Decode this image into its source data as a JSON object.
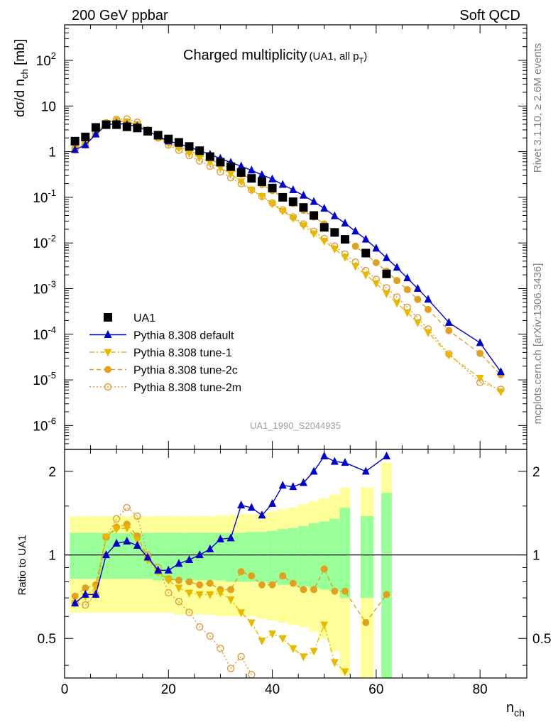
{
  "header": {
    "left": "200 GeV ppbar",
    "right": "Soft QCD"
  },
  "side_text": {
    "top": "Rivet 3.1.10, ≥ 2.6M events",
    "bottom": "mcplots.cern.ch [arXiv:1306.3436]"
  },
  "watermark": "UA1_1990_S2044935",
  "title_main": "Charged multiplicity",
  "title_sub_a": "(UA1, all p",
  "title_sub_sub": "T",
  "title_sub_b": ")",
  "ylabel_top": {
    "a": "dσ/d n",
    "sub": "ch",
    "b": " [mb]"
  },
  "ylabel_bottom": "Ratio to UA1",
  "xlabel": {
    "a": "n",
    "sub": "ch"
  },
  "colors": {
    "data": "#000000",
    "default": "#0000cc",
    "tune1": "#e6b800",
    "tune2c": "#e0a020",
    "tune2m": "#e39a3a",
    "band_inner": "#99ff99",
    "band_outer": "#ffff99"
  },
  "chart_data": [
    {
      "type": "scatter",
      "scale": "log",
      "xlim": [
        0,
        89
      ],
      "ylim": [
        3e-07,
        600
      ],
      "x_ticks": [
        "0",
        "20",
        "40",
        "60",
        "80"
      ],
      "y_ticks": [
        "10^-6",
        "10^-5",
        "10^-4",
        "10^-3",
        "10^-2",
        "10^-1",
        "1",
        "10",
        "10^2"
      ],
      "legend_position": "middle-left",
      "series": [
        {
          "name": "UA1",
          "style": "data",
          "x": [
            2,
            4,
            6,
            8,
            10,
            12,
            14,
            16,
            18,
            20,
            22,
            24,
            26,
            28,
            30,
            32,
            34,
            36,
            38,
            40,
            42,
            44,
            46,
            48,
            50,
            52,
            54,
            58,
            62
          ],
          "y": [
            1.7,
            2.1,
            3.4,
            3.9,
            3.9,
            3.5,
            3.3,
            2.8,
            2.3,
            1.9,
            1.6,
            1.3,
            1.05,
            0.78,
            0.59,
            0.47,
            0.35,
            0.26,
            0.22,
            0.16,
            0.1,
            0.08,
            0.06,
            0.04,
            0.022,
            0.017,
            0.012,
            0.006,
            0.0021
          ]
        },
        {
          "name": "Pythia 8.308 default",
          "style": "default",
          "x": [
            2,
            4,
            6,
            8,
            10,
            12,
            14,
            16,
            18,
            20,
            22,
            24,
            26,
            28,
            30,
            32,
            34,
            36,
            38,
            40,
            42,
            44,
            46,
            48,
            50,
            52,
            54,
            56,
            58,
            60,
            62,
            64,
            66,
            68,
            70,
            74,
            80,
            84
          ],
          "y": [
            1.1,
            1.4,
            2.4,
            3.8,
            4.2,
            3.9,
            3.6,
            2.8,
            2.2,
            1.7,
            1.5,
            1.25,
            1.05,
            0.87,
            0.71,
            0.58,
            0.48,
            0.39,
            0.31,
            0.25,
            0.19,
            0.145,
            0.11,
            0.08,
            0.057,
            0.039,
            0.027,
            0.018,
            0.012,
            0.0076,
            0.0047,
            0.0029,
            0.0017,
            0.001,
            0.00058,
            0.00018,
            6.5e-05,
            1.5e-05
          ]
        },
        {
          "name": "Pythia 8.308 tune-1",
          "style": "tune1",
          "x": [
            2,
            4,
            6,
            8,
            10,
            12,
            14,
            16,
            18,
            20,
            22,
            24,
            26,
            28,
            30,
            32,
            34,
            36,
            38,
            40,
            42,
            44,
            46,
            48,
            50,
            52,
            54,
            56,
            58,
            60,
            62,
            64,
            66,
            68,
            70,
            74,
            80,
            84
          ],
          "y": [
            1.1,
            1.5,
            2.6,
            4.2,
            4.8,
            4.4,
            3.8,
            2.9,
            2.1,
            1.5,
            1.2,
            0.93,
            0.75,
            0.58,
            0.44,
            0.33,
            0.22,
            0.145,
            0.105,
            0.072,
            0.05,
            0.035,
            0.024,
            0.016,
            0.011,
            0.0074,
            0.0049,
            0.0031,
            0.002,
            0.0013,
            0.00078,
            0.00048,
            0.0003,
            0.00018,
            0.00011,
            3.5e-05,
            1.1e-05,
            5.5e-06
          ]
        },
        {
          "name": "Pythia 8.308 tune-2c",
          "style": "tune2c",
          "x": [
            2,
            4,
            6,
            8,
            10,
            12,
            14,
            16,
            18,
            20,
            22,
            24,
            26,
            28,
            30,
            32,
            34,
            36,
            38,
            40,
            42,
            44,
            46,
            48,
            50,
            52,
            54,
            56,
            58,
            60,
            62,
            64,
            66,
            68,
            70,
            74,
            80,
            84
          ],
          "y": [
            1.2,
            1.6,
            2.6,
            4.3,
            4.8,
            4.5,
            3.9,
            3.0,
            2.1,
            1.6,
            1.3,
            1.04,
            0.85,
            0.68,
            0.54,
            0.42,
            0.32,
            0.25,
            0.19,
            0.14,
            0.1,
            0.073,
            0.052,
            0.037,
            0.026,
            0.018,
            0.0125,
            0.0085,
            0.0057,
            0.0037,
            0.0024,
            0.0015,
            0.00095,
            0.00058,
            0.00035,
            0.00012,
            3.8e-05,
            1.3e-05
          ]
        },
        {
          "name": "Pythia 8.308 tune-2m",
          "style": "tune2m",
          "x": [
            2,
            4,
            6,
            8,
            10,
            12,
            14,
            16,
            18,
            20,
            22,
            24,
            26,
            28,
            30,
            32,
            34,
            36,
            38,
            40,
            42,
            44,
            46,
            48,
            50,
            52,
            54,
            56,
            58,
            60,
            62,
            64,
            66,
            68,
            70,
            74,
            80,
            84
          ],
          "y": [
            1.1,
            1.4,
            2.5,
            4.3,
            5.1,
            5.2,
            4.4,
            3.0,
            2.0,
            1.4,
            1.07,
            0.82,
            0.63,
            0.48,
            0.36,
            0.27,
            0.2,
            0.145,
            0.105,
            0.075,
            0.053,
            0.037,
            0.026,
            0.018,
            0.0125,
            0.0085,
            0.0057,
            0.0038,
            0.0025,
            0.0016,
            0.00104,
            0.00065,
            0.00039,
            0.00023,
            0.00013,
            3.7e-05,
            8.8e-06,
            6.2e-06
          ]
        }
      ]
    },
    {
      "type": "line",
      "scale": "log",
      "xlim": [
        0,
        89
      ],
      "ylim": [
        0.36,
        2.4
      ],
      "x_ticks": [
        "0",
        "20",
        "40",
        "60",
        "80"
      ],
      "y_ticks": [
        "0.5",
        "1",
        "2"
      ],
      "bands": {
        "x_edges": [
          1,
          3,
          5,
          7,
          9,
          11,
          13,
          15,
          17,
          19,
          21,
          23,
          25,
          27,
          29,
          31,
          33,
          35,
          37,
          39,
          41,
          43,
          45,
          47,
          49,
          51,
          53,
          55
        ],
        "inner": [
          0.82,
          0.82,
          0.82,
          0.82,
          0.82,
          0.82,
          0.82,
          0.82,
          0.81,
          0.81,
          0.81,
          0.81,
          0.81,
          0.81,
          0.81,
          0.8,
          0.8,
          0.8,
          0.8,
          0.79,
          0.78,
          0.78,
          0.77,
          0.76,
          0.75,
          0.74,
          0.7
        ],
        "inner_hi": [
          1.2,
          1.2,
          1.2,
          1.2,
          1.2,
          1.2,
          1.2,
          1.2,
          1.2,
          1.2,
          1.2,
          1.2,
          1.2,
          1.2,
          1.2,
          1.2,
          1.2,
          1.21,
          1.21,
          1.22,
          1.24,
          1.25,
          1.27,
          1.3,
          1.32,
          1.35,
          1.48
        ],
        "outer_lo": [
          0.62,
          0.62,
          0.62,
          0.62,
          0.62,
          0.62,
          0.62,
          0.62,
          0.62,
          0.62,
          0.61,
          0.61,
          0.61,
          0.61,
          0.6,
          0.6,
          0.6,
          0.6,
          0.59,
          0.58,
          0.57,
          0.56,
          0.55,
          0.53,
          0.5,
          0.45,
          0.37
        ],
        "outer_hi": [
          1.38,
          1.38,
          1.38,
          1.38,
          1.38,
          1.38,
          1.38,
          1.38,
          1.38,
          1.38,
          1.38,
          1.38,
          1.38,
          1.38,
          1.39,
          1.39,
          1.4,
          1.4,
          1.41,
          1.43,
          1.46,
          1.48,
          1.52,
          1.56,
          1.6,
          1.65,
          1.75
        ],
        "extra": [
          {
            "x0": 57,
            "x1": 59.5,
            "inner_lo": 0.7,
            "inner_hi": 1.38,
            "outer_lo": 0.36,
            "outer_hi": 1.75
          },
          {
            "x0": 61,
            "x1": 63,
            "inner_lo": 0.36,
            "inner_hi": 1.67,
            "outer_lo": 0.36,
            "outer_hi": 2.15
          }
        ]
      },
      "series": [
        {
          "name": "Pythia 8.308 default",
          "style": "default",
          "x": [
            2,
            4,
            6,
            8,
            10,
            12,
            14,
            16,
            18,
            20,
            22,
            24,
            26,
            28,
            30,
            32,
            34,
            36,
            38,
            40,
            42,
            44,
            46,
            48,
            50,
            52,
            54,
            58,
            62
          ],
          "y": [
            0.67,
            0.72,
            0.72,
            1.0,
            1.1,
            1.12,
            1.08,
            0.98,
            0.88,
            0.88,
            0.93,
            0.96,
            1.0,
            1.05,
            1.14,
            1.15,
            1.51,
            1.48,
            1.39,
            1.53,
            1.78,
            1.76,
            1.82,
            2.0,
            2.27,
            2.17,
            2.15,
            2.0,
            2.27
          ]
        },
        {
          "name": "Pythia 8.308 tune-1",
          "style": "tune1",
          "x": [
            2,
            4,
            6,
            8,
            10,
            12,
            14,
            16,
            18,
            20,
            22,
            24,
            26,
            28,
            30,
            32,
            34,
            36,
            38,
            40,
            42,
            44,
            46,
            48,
            50,
            52,
            54
          ],
          "y": [
            0.67,
            0.71,
            0.76,
            1.16,
            1.24,
            1.25,
            1.13,
            0.96,
            0.87,
            0.81,
            0.76,
            0.73,
            0.72,
            0.72,
            0.73,
            0.69,
            0.62,
            0.57,
            0.49,
            0.52,
            0.5,
            0.46,
            0.43,
            0.45,
            0.56,
            0.41,
            0.38
          ]
        },
        {
          "name": "Pythia 8.308 tune-2c",
          "style": "tune2c",
          "x": [
            2,
            4,
            6,
            8,
            10,
            12,
            14,
            16,
            18,
            20,
            22,
            24,
            26,
            28,
            30,
            32,
            34,
            36,
            38,
            40,
            42,
            44,
            46,
            48,
            50,
            52,
            54,
            58,
            62
          ],
          "y": [
            0.71,
            0.76,
            0.78,
            1.16,
            1.26,
            1.29,
            1.17,
            0.98,
            0.87,
            0.82,
            0.81,
            0.8,
            0.78,
            0.79,
            0.75,
            0.75,
            0.87,
            0.84,
            0.78,
            0.78,
            0.84,
            0.79,
            0.75,
            0.75,
            0.89,
            0.74,
            0.74,
            0.57,
            0.72
          ]
        },
        {
          "name": "Pythia 8.308 tune-2m",
          "style": "tune2m",
          "x": [
            2,
            4,
            6,
            8,
            10,
            12,
            14,
            16,
            18,
            20,
            22,
            24,
            26,
            28,
            30,
            32,
            34,
            36
          ],
          "y": [
            0.67,
            0.66,
            0.72,
            1.16,
            1.35,
            1.48,
            1.38,
            1.0,
            0.9,
            0.73,
            0.68,
            0.62,
            0.55,
            0.51,
            0.46,
            0.39,
            0.43,
            0.37
          ]
        }
      ]
    }
  ]
}
